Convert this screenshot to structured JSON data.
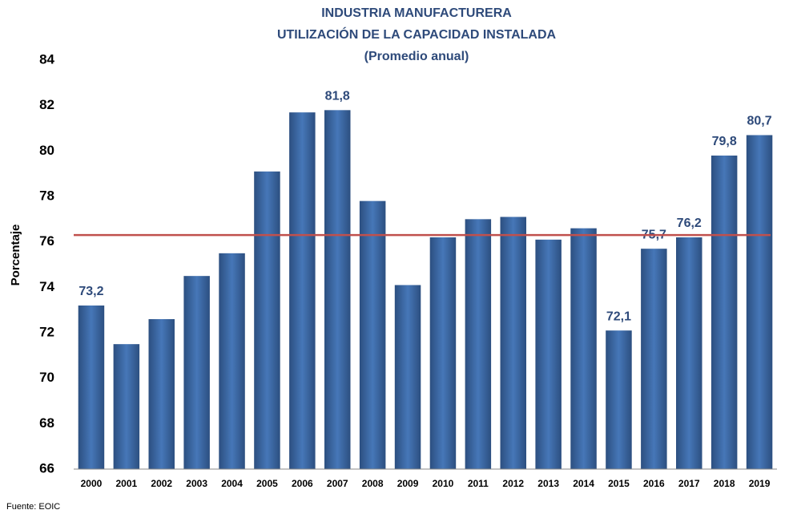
{
  "chart_data": {
    "type": "bar",
    "title": [
      "INDUSTRIA MANUFACTURERA",
      "UTILIZACIÓN DE LA CAPACIDAD INSTALADA",
      "(Promedio anual)"
    ],
    "ylabel": "Porcentaje",
    "source": "Fuente: EOIC",
    "categories": [
      "2000",
      "2001",
      "2002",
      "2003",
      "2004",
      "2005",
      "2006",
      "2007",
      "2008",
      "2009",
      "2010",
      "2011",
      "2012",
      "2013",
      "2014",
      "2015",
      "2016",
      "2017",
      "2018",
      "2019"
    ],
    "values": [
      73.2,
      71.5,
      72.6,
      74.5,
      75.5,
      79.1,
      81.7,
      81.8,
      77.8,
      74.1,
      76.2,
      77.0,
      77.1,
      76.1,
      76.6,
      72.1,
      75.7,
      76.2,
      79.8,
      80.7
    ],
    "value_labels": [
      "73,2",
      null,
      null,
      null,
      null,
      null,
      null,
      "81,8",
      null,
      null,
      null,
      null,
      null,
      null,
      null,
      "72,1",
      "75,7",
      "76,2",
      "79,8",
      "80,7"
    ],
    "color": "#3a6aa8",
    "reference_line": {
      "value": 76.3,
      "color": "#c0504d"
    },
    "ylim": [
      66,
      84
    ],
    "yticks": [
      66,
      68,
      70,
      72,
      74,
      76,
      78,
      80,
      82,
      84
    ],
    "grid": false
  }
}
